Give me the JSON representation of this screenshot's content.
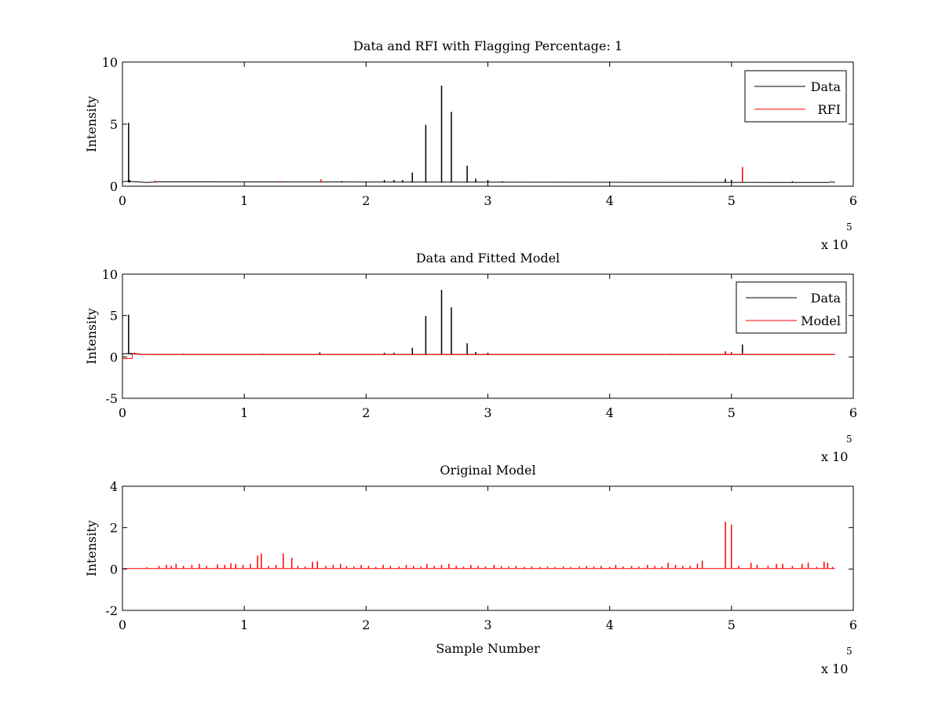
{
  "figure": {
    "background": "#ffffff"
  },
  "chart_data": [
    {
      "type": "line",
      "title": "Data and RFI with Flagging Percentage: 1",
      "xlabel": "",
      "ylabel": "Intensity",
      "xlim": [
        0,
        6
      ],
      "ylim": [
        0,
        10
      ],
      "xticks": [
        "0",
        "1",
        "2",
        "3",
        "4",
        "5",
        "6"
      ],
      "yticks": [
        "0",
        "5",
        "10"
      ],
      "x_multiplier": {
        "base": "x 10",
        "exponent": "5"
      },
      "grid": false,
      "legend_position": "top-right",
      "series": [
        {
          "name": "Data",
          "color": "#000000",
          "baseline": 0.3,
          "points": [
            [
              0,
              0.35
            ],
            [
              0.04,
              0.4
            ],
            [
              0.2,
              0.3
            ],
            [
              0.3,
              0.35
            ],
            [
              5.8,
              0.3
            ],
            [
              5.82,
              0.35
            ],
            [
              5.85,
              0.3
            ]
          ],
          "spikes": [
            [
              0.05,
              5.1
            ],
            [
              0.06,
              0.5
            ],
            [
              1.8,
              0.4
            ],
            [
              2.15,
              0.5
            ],
            [
              2.23,
              0.5
            ],
            [
              2.3,
              0.5
            ],
            [
              2.38,
              1.1
            ],
            [
              2.49,
              4.95
            ],
            [
              2.62,
              8.1
            ],
            [
              2.7,
              5.98
            ],
            [
              2.83,
              1.65
            ],
            [
              2.9,
              0.6
            ],
            [
              3.0,
              0.5
            ],
            [
              3.12,
              0.4
            ],
            [
              4.95,
              0.6
            ],
            [
              5.0,
              0.5
            ],
            [
              5.5,
              0.4
            ]
          ]
        },
        {
          "name": "RFI",
          "color": "#ff0000",
          "baseline": 0.3,
          "points": [],
          "spikes": [
            [
              0.27,
              0.45
            ],
            [
              1.3,
              0.4
            ],
            [
              1.38,
              0.35
            ],
            [
              1.63,
              0.55
            ],
            [
              5.09,
              1.55
            ]
          ]
        }
      ]
    },
    {
      "type": "line",
      "title": "Data and Fitted Model",
      "xlabel": "",
      "ylabel": "Intensity",
      "xlim": [
        0,
        6
      ],
      "ylim": [
        -5,
        10
      ],
      "xticks": [
        "0",
        "1",
        "2",
        "3",
        "4",
        "5",
        "6"
      ],
      "yticks": [
        "-5",
        "0",
        "5",
        "10"
      ],
      "x_multiplier": {
        "base": "x 10",
        "exponent": "5"
      },
      "grid": false,
      "legend_position": "top-right",
      "series": [
        {
          "name": "Data",
          "color": "#000000",
          "baseline": 0.3,
          "points": [
            [
              0,
              0.35
            ],
            [
              0.04,
              0.4
            ],
            [
              0.2,
              0.3
            ],
            [
              5.85,
              0.3
            ]
          ],
          "spikes": [
            [
              0.05,
              5.1
            ],
            [
              0.07,
              0.5
            ],
            [
              0.1,
              0.5
            ],
            [
              1.62,
              0.55
            ],
            [
              2.15,
              0.5
            ],
            [
              2.23,
              0.5
            ],
            [
              2.38,
              1.1
            ],
            [
              2.49,
              4.95
            ],
            [
              2.62,
              8.1
            ],
            [
              2.7,
              5.98
            ],
            [
              2.83,
              1.65
            ],
            [
              2.9,
              0.6
            ],
            [
              3.0,
              0.5
            ],
            [
              4.95,
              0.6
            ],
            [
              5.09,
              1.5
            ]
          ]
        },
        {
          "name": "Model",
          "color": "#ff0000",
          "baseline": 0.3,
          "points": [
            [
              0,
              -0.2
            ],
            [
              0.08,
              -0.2
            ],
            [
              0.08,
              0.4
            ],
            [
              0.12,
              0.4
            ],
            [
              0.14,
              0.3
            ],
            [
              5.85,
              0.3
            ]
          ],
          "spikes": [
            [
              0.5,
              0.4
            ],
            [
              1.15,
              0.4
            ],
            [
              2.0,
              0.38
            ],
            [
              3.5,
              0.35
            ],
            [
              4.5,
              0.38
            ],
            [
              4.95,
              0.7
            ],
            [
              5.0,
              0.6
            ],
            [
              5.09,
              0.5
            ]
          ]
        }
      ]
    },
    {
      "type": "line",
      "title": "Original Model",
      "xlabel": "Sample Number",
      "ylabel": "Intensity",
      "xlim": [
        0,
        6
      ],
      "ylim": [
        -2,
        4
      ],
      "xticks": [
        "0",
        "1",
        "2",
        "3",
        "4",
        "5",
        "6"
      ],
      "yticks": [
        "-2",
        "0",
        "2",
        "4"
      ],
      "x_multiplier": {
        "base": "x 10",
        "exponent": "5"
      },
      "grid": false,
      "legend_position": "none",
      "series": [
        {
          "color": "#ff0000",
          "baseline": 0.02,
          "points": [
            [
              0,
              0.02
            ],
            [
              5.85,
              0.02
            ]
          ],
          "spikes": [
            [
              0.2,
              0.08
            ],
            [
              0.3,
              0.15
            ],
            [
              0.36,
              0.2
            ],
            [
              0.4,
              0.15
            ],
            [
              0.44,
              0.25
            ],
            [
              0.5,
              0.15
            ],
            [
              0.57,
              0.2
            ],
            [
              0.63,
              0.25
            ],
            [
              0.69,
              0.15
            ],
            [
              0.78,
              0.22
            ],
            [
              0.84,
              0.2
            ],
            [
              0.89,
              0.28
            ],
            [
              0.93,
              0.25
            ],
            [
              0.99,
              0.2
            ],
            [
              1.05,
              0.25
            ],
            [
              1.11,
              0.65
            ],
            [
              1.14,
              0.75
            ],
            [
              1.2,
              0.15
            ],
            [
              1.26,
              0.2
            ],
            [
              1.32,
              0.75
            ],
            [
              1.39,
              0.55
            ],
            [
              1.44,
              0.15
            ],
            [
              1.5,
              0.12
            ],
            [
              1.56,
              0.35
            ],
            [
              1.6,
              0.38
            ],
            [
              1.67,
              0.15
            ],
            [
              1.73,
              0.2
            ],
            [
              1.79,
              0.25
            ],
            [
              1.84,
              0.15
            ],
            [
              1.9,
              0.12
            ],
            [
              1.96,
              0.2
            ],
            [
              2.02,
              0.15
            ],
            [
              2.08,
              0.1
            ],
            [
              2.14,
              0.2
            ],
            [
              2.2,
              0.15
            ],
            [
              2.27,
              0.12
            ],
            [
              2.33,
              0.2
            ],
            [
              2.39,
              0.15
            ],
            [
              2.45,
              0.12
            ],
            [
              2.5,
              0.25
            ],
            [
              2.56,
              0.15
            ],
            [
              2.62,
              0.2
            ],
            [
              2.68,
              0.25
            ],
            [
              2.74,
              0.15
            ],
            [
              2.8,
              0.12
            ],
            [
              2.86,
              0.2
            ],
            [
              2.92,
              0.15
            ],
            [
              2.98,
              0.12
            ],
            [
              3.05,
              0.2
            ],
            [
              3.11,
              0.15
            ],
            [
              3.17,
              0.12
            ],
            [
              3.23,
              0.15
            ],
            [
              3.3,
              0.1
            ],
            [
              3.36,
              0.12
            ],
            [
              3.43,
              0.1
            ],
            [
              3.49,
              0.12
            ],
            [
              3.55,
              0.1
            ],
            [
              3.62,
              0.12
            ],
            [
              3.68,
              0.1
            ],
            [
              3.75,
              0.12
            ],
            [
              3.81,
              0.15
            ],
            [
              3.87,
              0.12
            ],
            [
              3.93,
              0.15
            ],
            [
              4.0,
              0.1
            ],
            [
              4.05,
              0.2
            ],
            [
              4.11,
              0.12
            ],
            [
              4.18,
              0.15
            ],
            [
              4.24,
              0.12
            ],
            [
              4.31,
              0.2
            ],
            [
              4.37,
              0.15
            ],
            [
              4.43,
              0.12
            ],
            [
              4.48,
              0.3
            ],
            [
              4.54,
              0.2
            ],
            [
              4.6,
              0.15
            ],
            [
              4.66,
              0.15
            ],
            [
              4.72,
              0.25
            ],
            [
              4.76,
              0.4
            ],
            [
              4.95,
              2.28
            ],
            [
              5.0,
              2.15
            ],
            [
              5.06,
              0.15
            ],
            [
              5.16,
              0.3
            ],
            [
              5.21,
              0.2
            ],
            [
              5.3,
              0.15
            ],
            [
              5.37,
              0.25
            ],
            [
              5.42,
              0.25
            ],
            [
              5.5,
              0.15
            ],
            [
              5.58,
              0.25
            ],
            [
              5.63,
              0.3
            ],
            [
              5.7,
              0.1
            ],
            [
              5.76,
              0.35
            ],
            [
              5.79,
              0.3
            ],
            [
              5.83,
              0.1
            ]
          ]
        }
      ]
    }
  ]
}
